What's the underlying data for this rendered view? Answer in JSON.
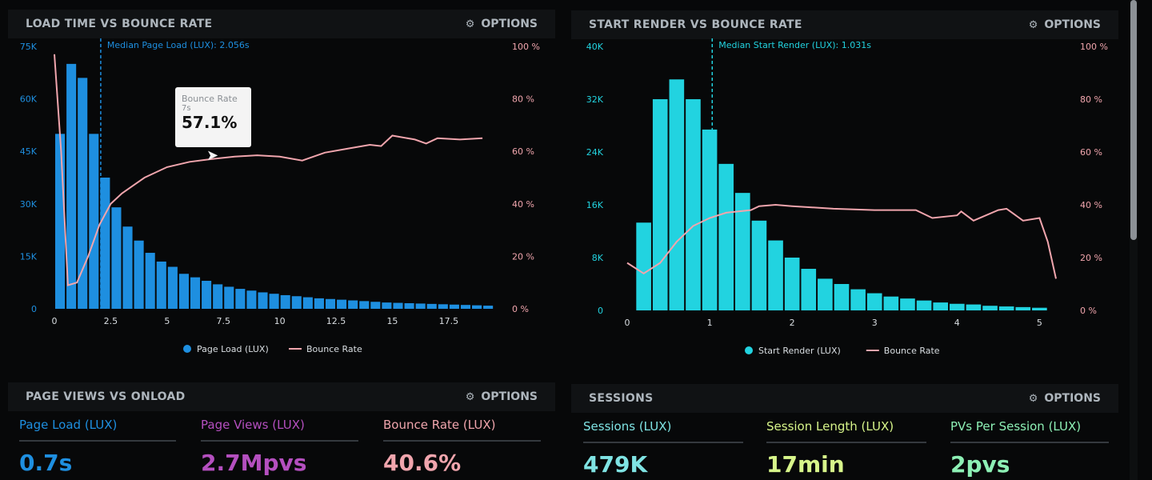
{
  "colors": {
    "blue": "#1e8fe0",
    "cyan": "#22d3e0",
    "pink": "#f0a5ad",
    "purple": "#b44fbf",
    "lime": "#d7f58a",
    "mint": "#8df0b5",
    "teal": "#7fe3e3"
  },
  "panels": {
    "load": {
      "title": "LOAD TIME VS BOUNCE RATE",
      "options": "OPTIONS",
      "median_label": "Median Page Load (LUX): 2.056s",
      "legend_primary": "Page Load (LUX)",
      "legend_secondary": "Bounce Rate",
      "tooltip": {
        "title": "Bounce Rate",
        "x": "7s",
        "value": "57.1%"
      }
    },
    "render": {
      "title": "START RENDER VS BOUNCE RATE",
      "options": "OPTIONS",
      "median_label": "Median Start Render (LUX): 1.031s",
      "legend_primary": "Start Render (LUX)",
      "legend_secondary": "Bounce Rate"
    },
    "pageviews": {
      "title": "PAGE VIEWS VS ONLOAD",
      "options": "OPTIONS",
      "metrics": [
        {
          "label": "Page Load (LUX)",
          "value": "0.7s"
        },
        {
          "label": "Page Views (LUX)",
          "value": "2.7Mpvs"
        },
        {
          "label": "Bounce Rate (LUX)",
          "value": "40.6%"
        }
      ]
    },
    "sessions": {
      "title": "SESSIONS",
      "options": "OPTIONS",
      "metrics": [
        {
          "label": "Sessions (LUX)",
          "value": "479K"
        },
        {
          "label": "Session Length (LUX)",
          "value": "17min"
        },
        {
          "label": "PVs Per Session (LUX)",
          "value": "2pvs"
        }
      ]
    }
  },
  "chart_data": [
    {
      "type": "bar",
      "title": "LOAD TIME VS BOUNCE RATE",
      "x_ticks": [
        "0",
        "2.5",
        "5",
        "7.5",
        "10",
        "12.5",
        "15",
        "17.5"
      ],
      "y_left_ticks": [
        "0",
        "15K",
        "30K",
        "45K",
        "60K",
        "75K"
      ],
      "y_right_ticks": [
        "0 %",
        "20 %",
        "40 %",
        "60 %",
        "80 %",
        "100 %"
      ],
      "xlim": [
        0,
        19.6
      ],
      "ylim": [
        0,
        75000
      ],
      "y2lim": [
        0,
        100
      ],
      "median_x": 2.056,
      "series": [
        {
          "name": "Page Load (LUX)",
          "kind": "bar",
          "bin_start": 0,
          "bin_width": 0.5,
          "values": [
            50000,
            70000,
            66000,
            50000,
            37500,
            29000,
            23500,
            19500,
            16000,
            13500,
            12000,
            10000,
            9000,
            8000,
            7000,
            6300,
            5700,
            5200,
            4700,
            4300,
            3900,
            3600,
            3300,
            3000,
            2800,
            2600,
            2400,
            2200,
            2000,
            1800,
            1700,
            1600,
            1500,
            1400,
            1300,
            1200,
            1100,
            1000,
            900
          ]
        },
        {
          "name": "Bounce Rate",
          "kind": "line",
          "x": [
            0,
            0.3,
            0.6,
            1,
            1.5,
            2,
            2.5,
            3,
            3.5,
            4,
            5,
            6,
            7,
            8,
            9,
            10,
            11,
            12,
            13,
            14,
            14.5,
            15,
            16,
            16.5,
            17,
            18,
            19
          ],
          "y": [
            97,
            60,
            9,
            10,
            20,
            32,
            40,
            44,
            47,
            50,
            54,
            56,
            57.1,
            58,
            58.5,
            58,
            56.5,
            59.5,
            61,
            62.5,
            62,
            66,
            64.5,
            63,
            65,
            64.5,
            65
          ]
        }
      ]
    },
    {
      "type": "bar",
      "title": "START RENDER VS BOUNCE RATE",
      "x_ticks": [
        "0",
        "1",
        "2",
        "3",
        "4",
        "5"
      ],
      "y_left_ticks": [
        "0",
        "8K",
        "16K",
        "24K",
        "32K",
        "40K"
      ],
      "y_right_ticks": [
        "0 %",
        "20 %",
        "40 %",
        "60 %",
        "80 %",
        "100 %"
      ],
      "xlim": [
        0,
        5.2
      ],
      "ylim": [
        0,
        40000
      ],
      "y2lim": [
        0,
        100
      ],
      "median_x": 1.031,
      "series": [
        {
          "name": "Start Render (LUX)",
          "kind": "bar",
          "bin_start": 0.1,
          "bin_width": 0.2,
          "values": [
            13300,
            32000,
            35000,
            32000,
            27400,
            22200,
            17800,
            13600,
            10600,
            8000,
            6300,
            4800,
            4000,
            3200,
            2600,
            2100,
            1800,
            1500,
            1200,
            1000,
            900,
            700,
            600,
            500,
            400
          ]
        },
        {
          "name": "Bounce Rate",
          "kind": "line",
          "x": [
            0,
            0.2,
            0.4,
            0.6,
            0.8,
            1,
            1.2,
            1.5,
            1.6,
            1.8,
            2,
            2.5,
            3,
            3.5,
            3.7,
            4,
            4.05,
            4.2,
            4.5,
            4.6,
            4.8,
            5,
            5.1,
            5.2
          ],
          "y": [
            18,
            14,
            18,
            26,
            32,
            35,
            37,
            38,
            39.5,
            40,
            39.5,
            38.5,
            38,
            38,
            35,
            36,
            37.5,
            34,
            38,
            38.5,
            34,
            35,
            26,
            12
          ]
        }
      ]
    }
  ]
}
